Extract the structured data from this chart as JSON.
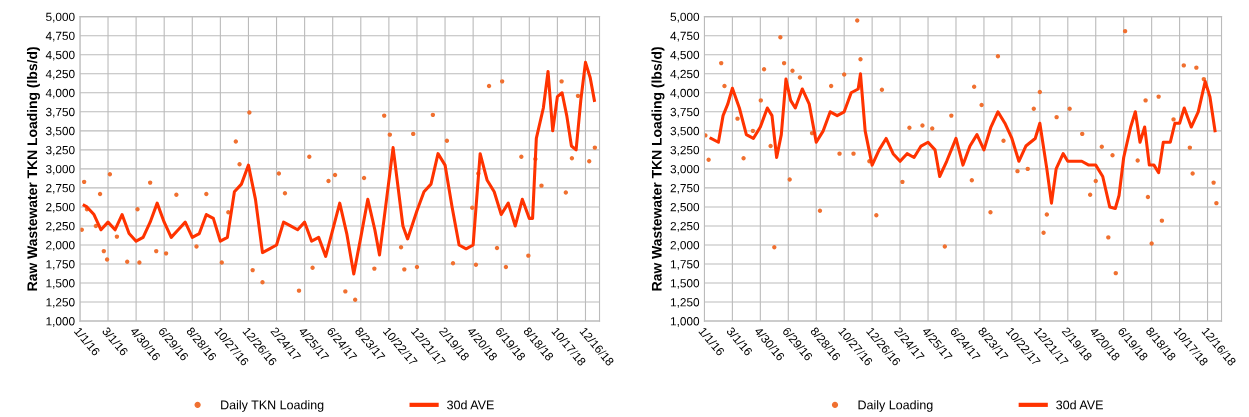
{
  "chart_data": [
    {
      "type": "line",
      "ylabel": "Raw Wastewater TKN Loading (lbs/d)",
      "xlim": [
        "2016-01-01",
        "2019-01-15"
      ],
      "ylim": [
        1000,
        5000
      ],
      "yticks": [
        {
          "value": 1000,
          "label": "1,000"
        },
        {
          "value": 1250,
          "label": "1,250"
        },
        {
          "value": 1500,
          "label": "1,500"
        },
        {
          "value": 1750,
          "label": "1,750"
        },
        {
          "value": 2000,
          "label": "2,000"
        },
        {
          "value": 2250,
          "label": "2,250"
        },
        {
          "value": 2500,
          "label": "2,500"
        },
        {
          "value": 2750,
          "label": "2,750"
        },
        {
          "value": 3000,
          "label": "3,000"
        },
        {
          "value": 3250,
          "label": "3,250"
        },
        {
          "value": 3500,
          "label": "3,500"
        },
        {
          "value": 3750,
          "label": "3,750"
        },
        {
          "value": 4000,
          "label": "4,000"
        },
        {
          "value": 4250,
          "label": "4,250"
        },
        {
          "value": 4500,
          "label": "4,500"
        },
        {
          "value": 4750,
          "label": "4,750"
        },
        {
          "value": 5000,
          "label": "5,000"
        }
      ],
      "xticks": [
        {
          "value": "2016-01-01",
          "label": "1/1/16"
        },
        {
          "value": "2016-03-01",
          "label": "3/1/16"
        },
        {
          "value": "2016-04-30",
          "label": "4/30/16"
        },
        {
          "value": "2016-06-29",
          "label": "6/29/16"
        },
        {
          "value": "2016-08-28",
          "label": "8/28/16"
        },
        {
          "value": "2016-10-27",
          "label": "10/27/16"
        },
        {
          "value": "2016-12-26",
          "label": "12/26/16"
        },
        {
          "value": "2017-02-24",
          "label": "2/24/17"
        },
        {
          "value": "2017-04-25",
          "label": "4/25/17"
        },
        {
          "value": "2017-06-24",
          "label": "6/24/17"
        },
        {
          "value": "2017-08-23",
          "label": "8/23/17"
        },
        {
          "value": "2017-10-22",
          "label": "10/22/17"
        },
        {
          "value": "2017-12-21",
          "label": "12/21/17"
        },
        {
          "value": "2018-02-19",
          "label": "2/19/18"
        },
        {
          "value": "2018-04-20",
          "label": "4/20/18"
        },
        {
          "value": "2018-06-19",
          "label": "6/19/18"
        },
        {
          "value": "2018-08-18",
          "label": "8/18/18"
        },
        {
          "value": "2018-10-17",
          "label": "10/17/18"
        },
        {
          "value": "2018-12-16",
          "label": "12/16/18"
        }
      ],
      "grid": true,
      "legend": "bottom",
      "series": [
        {
          "name": "Daily TKN Loading",
          "type": "scatter",
          "marker": "circle",
          "color": "#f07030",
          "x": [
            "2016-01-05",
            "2016-01-10",
            "2016-01-16",
            "2016-02-04",
            "2016-02-13",
            "2016-02-21",
            "2016-02-28",
            "2016-03-05",
            "2016-03-20",
            "2016-04-11",
            "2016-05-03",
            "2016-05-07",
            "2016-05-30",
            "2016-06-12",
            "2016-07-03",
            "2016-07-25",
            "2016-09-06",
            "2016-09-27",
            "2016-10-30",
            "2016-11-13",
            "2016-11-29",
            "2016-12-07",
            "2016-12-28",
            "2017-01-04",
            "2017-01-25",
            "2017-03-01",
            "2017-03-14",
            "2017-04-13",
            "2017-05-05",
            "2017-05-12",
            "2017-06-15",
            "2017-06-29",
            "2017-07-21",
            "2017-08-11",
            "2017-08-30",
            "2017-09-21",
            "2017-10-12",
            "2017-10-24",
            "2017-11-17",
            "2017-11-24",
            "2017-12-13",
            "2017-12-21",
            "2018-01-24",
            "2018-02-23",
            "2018-03-08",
            "2018-04-18",
            "2018-04-26",
            "2018-05-01",
            "2018-05-24",
            "2018-06-10",
            "2018-06-21",
            "2018-06-29",
            "2018-08-01",
            "2018-08-16",
            "2018-08-31",
            "2018-09-13",
            "2018-10-26",
            "2018-11-04",
            "2018-11-17",
            "2018-11-30",
            "2018-12-24",
            "2019-01-05"
          ],
          "values": [
            2200,
            2830,
            2470,
            2250,
            2670,
            1920,
            1810,
            2930,
            2110,
            1780,
            2470,
            1770,
            2820,
            1920,
            1890,
            2660,
            1980,
            2670,
            1770,
            2430,
            3360,
            3060,
            3740,
            1670,
            1510,
            2940,
            2680,
            1400,
            3160,
            1700,
            2840,
            2920,
            1390,
            1280,
            2880,
            1690,
            3700,
            3450,
            1970,
            1680,
            3460,
            1710,
            3710,
            3370,
            1760,
            2490,
            1740,
            2940,
            4090,
            1960,
            4150,
            1710,
            3160,
            1860,
            3130,
            2780,
            4150,
            2690,
            3140,
            3960,
            3100,
            3280
          ]
        },
        {
          "name": "30d AVE",
          "color": "#ff3300",
          "x": [
            "2016-01-10",
            "2016-01-16",
            "2016-01-31",
            "2016-02-15",
            "2016-03-01",
            "2016-03-16",
            "2016-03-31",
            "2016-04-15",
            "2016-04-30",
            "2016-05-15",
            "2016-05-30",
            "2016-06-14",
            "2016-06-29",
            "2016-07-14",
            "2016-07-29",
            "2016-08-13",
            "2016-08-28",
            "2016-09-12",
            "2016-09-27",
            "2016-10-12",
            "2016-10-27",
            "2016-11-11",
            "2016-11-26",
            "2016-12-11",
            "2016-12-26",
            "2017-01-10",
            "2017-01-25",
            "2017-02-09",
            "2017-02-24",
            "2017-03-11",
            "2017-03-26",
            "2017-04-10",
            "2017-04-25",
            "2017-05-10",
            "2017-05-25",
            "2017-06-09",
            "2017-06-24",
            "2017-07-09",
            "2017-07-24",
            "2017-08-08",
            "2017-08-23",
            "2017-09-07",
            "2017-09-22",
            "2017-10-02",
            "2017-10-31",
            "2017-11-21",
            "2017-12-01",
            "2017-12-21",
            "2018-01-05",
            "2018-01-20",
            "2018-02-04",
            "2018-02-19",
            "2018-03-06",
            "2018-03-21",
            "2018-04-05",
            "2018-04-20",
            "2018-05-05",
            "2018-05-20",
            "2018-06-04",
            "2018-06-19",
            "2018-07-04",
            "2018-07-19",
            "2018-08-03",
            "2018-08-18",
            "2018-08-25",
            "2018-09-02",
            "2018-09-17",
            "2018-09-27",
            "2018-10-07",
            "2018-10-17",
            "2018-10-27",
            "2018-11-06",
            "2018-11-16",
            "2018-11-26",
            "2018-12-06",
            "2018-12-16",
            "2018-12-26",
            "2019-01-04"
          ],
          "values": [
            2520,
            2500,
            2400,
            2200,
            2300,
            2200,
            2400,
            2150,
            2050,
            2100,
            2300,
            2550,
            2300,
            2100,
            2200,
            2300,
            2100,
            2150,
            2400,
            2350,
            2050,
            2100,
            2700,
            2800,
            3050,
            2600,
            1900,
            1950,
            2000,
            2300,
            2250,
            2200,
            2300,
            2050,
            2100,
            1850,
            2200,
            2550,
            2150,
            1620,
            2100,
            2600,
            2200,
            1870,
            3280,
            2250,
            2080,
            2450,
            2700,
            2800,
            3200,
            3050,
            2500,
            2000,
            1950,
            2000,
            3200,
            2850,
            2700,
            2400,
            2550,
            2250,
            2600,
            2350,
            2350,
            3400,
            3800,
            4280,
            3500,
            3950,
            4000,
            3700,
            3300,
            3250,
            3900,
            4400,
            4200,
            3900
          ]
        }
      ]
    },
    {
      "type": "line",
      "ylabel": "Raw Wastewater TKN Loading (lbs/d)",
      "xlim": [
        "2016-01-01",
        "2019-01-15"
      ],
      "ylim": [
        1000,
        5000
      ],
      "yticks": [
        {
          "value": 1000,
          "label": "1,000"
        },
        {
          "value": 1250,
          "label": "1,250"
        },
        {
          "value": 1500,
          "label": "1,500"
        },
        {
          "value": 1750,
          "label": "1,750"
        },
        {
          "value": 2000,
          "label": "2,000"
        },
        {
          "value": 2250,
          "label": "2,250"
        },
        {
          "value": 2500,
          "label": "2,500"
        },
        {
          "value": 2750,
          "label": "2,750"
        },
        {
          "value": 3000,
          "label": "3,000"
        },
        {
          "value": 3250,
          "label": "3,250"
        },
        {
          "value": 3500,
          "label": "3,500"
        },
        {
          "value": 3750,
          "label": "3,750"
        },
        {
          "value": 4000,
          "label": "4,000"
        },
        {
          "value": 4250,
          "label": "4,250"
        },
        {
          "value": 4500,
          "label": "4,500"
        },
        {
          "value": 4750,
          "label": "4,750"
        },
        {
          "value": 5000,
          "label": "5,000"
        }
      ],
      "xticks": [
        {
          "value": "2016-01-01",
          "label": "1/1/16"
        },
        {
          "value": "2016-03-01",
          "label": "3/1/16"
        },
        {
          "value": "2016-04-30",
          "label": "4/30/16"
        },
        {
          "value": "2016-06-29",
          "label": "6/29/16"
        },
        {
          "value": "2016-08-28",
          "label": "8/28/16"
        },
        {
          "value": "2016-10-27",
          "label": "10/27/16"
        },
        {
          "value": "2016-12-26",
          "label": "12/26/16"
        },
        {
          "value": "2017-02-24",
          "label": "2/24/17"
        },
        {
          "value": "2017-04-25",
          "label": "4/25/17"
        },
        {
          "value": "2017-06-24",
          "label": "6/24/17"
        },
        {
          "value": "2017-08-23",
          "label": "8/23/17"
        },
        {
          "value": "2017-10-22",
          "label": "10/22/17"
        },
        {
          "value": "2017-12-21",
          "label": "12/21/17"
        },
        {
          "value": "2018-02-19",
          "label": "2/19/18"
        },
        {
          "value": "2018-04-20",
          "label": "4/20/18"
        },
        {
          "value": "2018-06-19",
          "label": "6/19/18"
        },
        {
          "value": "2018-08-18",
          "label": "8/18/18"
        },
        {
          "value": "2018-10-17",
          "label": "10/17/18"
        },
        {
          "value": "2018-12-16",
          "label": "12/16/18"
        }
      ],
      "grid": true,
      "legend": "bottom",
      "series": [
        {
          "name": "Daily Loading",
          "type": "scatter",
          "marker": "circle",
          "color": "#f07030",
          "x": [
            "2016-01-03",
            "2016-01-10",
            "2016-02-06",
            "2016-02-13",
            "2016-03-12",
            "2016-03-25",
            "2016-04-14",
            "2016-05-01",
            "2016-05-08",
            "2016-05-22",
            "2016-05-30",
            "2016-06-12",
            "2016-06-20",
            "2016-07-02",
            "2016-07-08",
            "2016-07-24",
            "2016-08-19",
            "2016-09-05",
            "2016-09-29",
            "2016-10-17",
            "2016-10-27",
            "2016-11-16",
            "2016-11-24",
            "2016-12-01",
            "2016-12-20",
            "2017-01-04",
            "2017-01-16",
            "2017-03-01",
            "2017-03-16",
            "2017-04-13",
            "2017-05-04",
            "2017-05-31",
            "2017-06-14",
            "2017-07-28",
            "2017-08-02",
            "2017-08-18",
            "2017-09-06",
            "2017-09-22",
            "2017-10-04",
            "2017-11-03",
            "2017-11-25",
            "2017-12-08",
            "2017-12-21",
            "2017-12-29",
            "2018-01-05",
            "2018-01-26",
            "2018-02-23",
            "2018-03-22",
            "2018-04-08",
            "2018-04-20",
            "2018-05-03",
            "2018-05-17",
            "2018-05-26",
            "2018-06-02",
            "2018-06-22",
            "2018-07-19",
            "2018-08-05",
            "2018-08-10",
            "2018-08-18",
            "2018-09-02",
            "2018-09-09",
            "2018-10-04",
            "2018-10-26",
            "2018-11-08",
            "2018-11-14",
            "2018-11-22",
            "2018-12-08",
            "2018-12-29",
            "2019-01-04"
          ],
          "values": [
            3440,
            3120,
            4390,
            4090,
            3660,
            3140,
            3500,
            3900,
            4310,
            3300,
            1970,
            4730,
            4390,
            2860,
            4290,
            4200,
            3470,
            2450,
            4090,
            3200,
            4240,
            3200,
            4950,
            4440,
            3100,
            2390,
            4040,
            2830,
            3540,
            3570,
            3530,
            1980,
            3700,
            2850,
            4080,
            3840,
            2430,
            4480,
            3370,
            2970,
            3000,
            3790,
            4010,
            2160,
            2400,
            3680,
            3790,
            3460,
            2660,
            2840,
            3290,
            2100,
            3180,
            1630,
            4810,
            3110,
            3900,
            2630,
            2020,
            3950,
            2320,
            3650,
            4360,
            3280,
            2940,
            4330,
            4180,
            2820,
            2550
          ]
        },
        {
          "name": "30d AVE",
          "color": "#ff3300",
          "x": [
            "2016-01-15",
            "2016-01-31",
            "2016-02-10",
            "2016-02-20",
            "2016-03-01",
            "2016-03-16",
            "2016-03-31",
            "2016-04-15",
            "2016-04-30",
            "2016-05-15",
            "2016-05-25",
            "2016-06-04",
            "2016-06-14",
            "2016-06-24",
            "2016-07-04",
            "2016-07-14",
            "2016-07-29",
            "2016-08-13",
            "2016-08-28",
            "2016-09-12",
            "2016-09-27",
            "2016-10-12",
            "2016-10-27",
            "2016-11-11",
            "2016-11-26",
            "2016-12-01",
            "2016-12-11",
            "2016-12-26",
            "2017-01-10",
            "2017-01-25",
            "2017-02-09",
            "2017-02-24",
            "2017-03-11",
            "2017-03-26",
            "2017-04-10",
            "2017-04-25",
            "2017-05-10",
            "2017-05-20",
            "2017-06-04",
            "2017-06-24",
            "2017-07-09",
            "2017-07-24",
            "2017-08-08",
            "2017-08-23",
            "2017-09-07",
            "2017-09-22",
            "2017-10-07",
            "2017-10-22",
            "2017-11-06",
            "2017-11-21",
            "2017-12-11",
            "2017-12-21",
            "2018-01-05",
            "2018-01-15",
            "2018-01-25",
            "2018-02-09",
            "2018-02-19",
            "2018-03-06",
            "2018-03-21",
            "2018-04-05",
            "2018-04-20",
            "2018-05-05",
            "2018-05-20",
            "2018-06-01",
            "2018-06-09",
            "2018-06-19",
            "2018-07-04",
            "2018-07-14",
            "2018-07-24",
            "2018-08-03",
            "2018-08-13",
            "2018-08-23",
            "2018-09-02",
            "2018-09-12",
            "2018-09-27",
            "2018-10-07",
            "2018-10-17",
            "2018-10-27",
            "2018-11-11",
            "2018-11-26",
            "2018-12-11",
            "2018-12-21",
            "2019-01-01"
          ],
          "values": [
            3400,
            3350,
            3700,
            3850,
            4060,
            3800,
            3450,
            3400,
            3550,
            3800,
            3700,
            3150,
            3450,
            4180,
            3900,
            3800,
            4050,
            3850,
            3350,
            3500,
            3750,
            3700,
            3750,
            4000,
            4050,
            4250,
            3500,
            3050,
            3250,
            3400,
            3200,
            3100,
            3200,
            3150,
            3300,
            3350,
            3250,
            2900,
            3100,
            3400,
            3050,
            3300,
            3450,
            3250,
            3550,
            3750,
            3600,
            3400,
            3100,
            3300,
            3400,
            3600,
            3000,
            2550,
            3000,
            3200,
            3100,
            3100,
            3100,
            3050,
            3050,
            2900,
            2500,
            2480,
            2650,
            3150,
            3550,
            3750,
            3350,
            3550,
            3050,
            3050,
            2950,
            3350,
            3350,
            3600,
            3600,
            3800,
            3550,
            3750,
            4150,
            3950,
            3500
          ]
        }
      ]
    }
  ]
}
